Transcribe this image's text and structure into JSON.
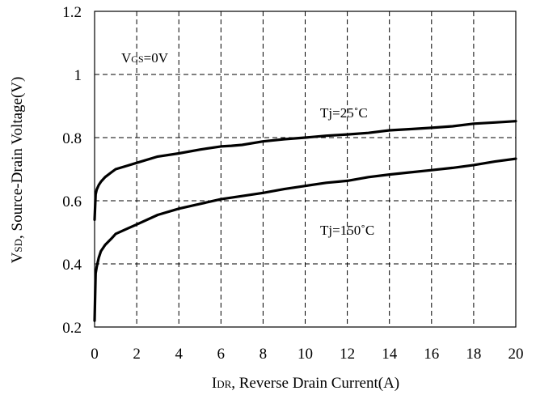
{
  "chart_data": {
    "type": "line",
    "xlabel_main": "I",
    "xlabel_sub": "DR",
    "xlabel_rest": ", Reverse Drain Current(A)",
    "ylabel_main": "V",
    "ylabel_sub": "SD",
    "ylabel_rest": ", Source-Drain Voltage(V)",
    "xlim": [
      0,
      20
    ],
    "ylim": [
      0.2,
      1.2
    ],
    "xticks": [
      0,
      2,
      4,
      6,
      8,
      10,
      12,
      14,
      16,
      18,
      20
    ],
    "yticks": [
      0.2,
      0.4,
      0.6,
      0.8,
      1,
      1.2
    ],
    "xtick_labels": [
      "0",
      "2",
      "4",
      "6",
      "8",
      "10",
      "12",
      "14",
      "16",
      "18",
      "20"
    ],
    "ytick_labels": [
      "0.2",
      "0.4",
      "0.6",
      "0.8",
      "1",
      "1.2"
    ],
    "grid": true,
    "annotations": {
      "condition_main": "V",
      "condition_sub": "GS",
      "condition_rest": "=0V",
      "tj25": "Tj=25˚C",
      "tj150": "Tj=150˚C"
    },
    "series": [
      {
        "name": "Tj=25˚C",
        "x": [
          0,
          0.05,
          0.1,
          0.2,
          0.3,
          0.5,
          0.8,
          1,
          1.5,
          2,
          3,
          4,
          5,
          6,
          6.5,
          7,
          8,
          9,
          10,
          11,
          12,
          13,
          14,
          15,
          16,
          17,
          18,
          19,
          20
        ],
        "y": [
          0.54,
          0.62,
          0.635,
          0.65,
          0.66,
          0.675,
          0.69,
          0.7,
          0.71,
          0.72,
          0.74,
          0.75,
          0.762,
          0.772,
          0.774,
          0.777,
          0.788,
          0.795,
          0.8,
          0.806,
          0.81,
          0.815,
          0.823,
          0.827,
          0.831,
          0.836,
          0.844,
          0.848,
          0.852
        ]
      },
      {
        "name": "Tj=150˚C",
        "x": [
          0,
          0.05,
          0.1,
          0.2,
          0.3,
          0.5,
          0.8,
          1,
          1.5,
          2,
          3,
          4,
          5,
          6,
          7,
          8,
          9,
          10,
          11,
          12,
          13,
          14,
          15,
          16,
          17,
          18,
          19,
          20
        ],
        "y": [
          0.22,
          0.37,
          0.39,
          0.42,
          0.44,
          0.46,
          0.48,
          0.495,
          0.51,
          0.525,
          0.555,
          0.575,
          0.59,
          0.605,
          0.615,
          0.625,
          0.637,
          0.647,
          0.657,
          0.663,
          0.675,
          0.683,
          0.69,
          0.697,
          0.704,
          0.713,
          0.724,
          0.733
        ]
      }
    ]
  }
}
